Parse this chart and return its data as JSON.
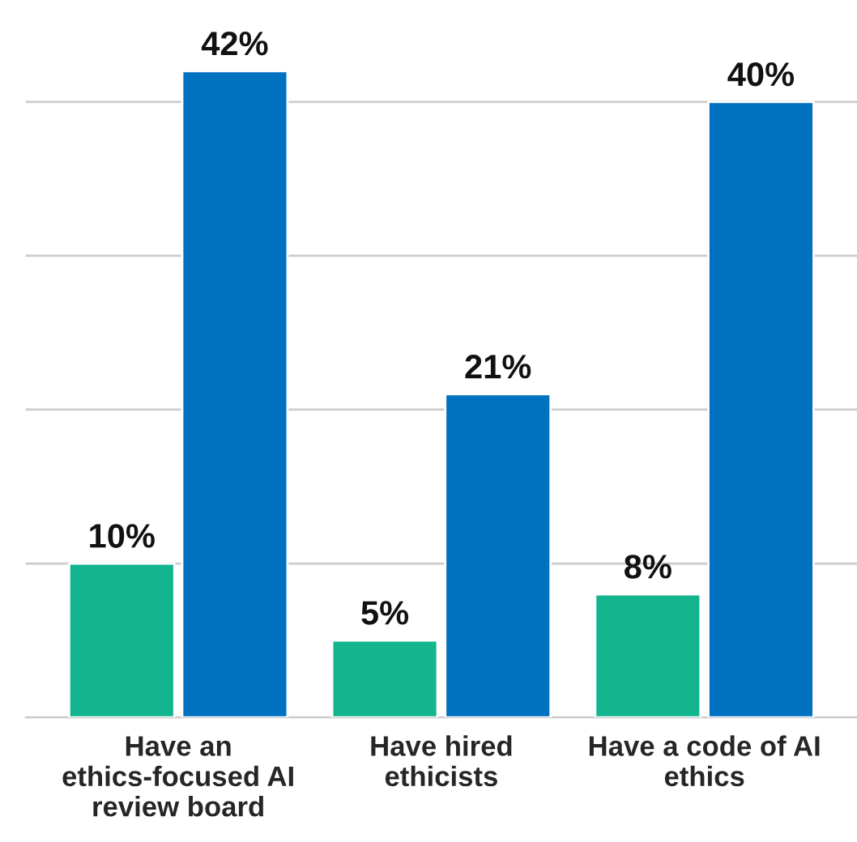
{
  "chart_data": {
    "type": "bar",
    "categories": [
      "Have an ethics-focused AI review board",
      "Have hired ethicists",
      "Have a code of AI ethics"
    ],
    "series": [
      {
        "color": "#13b48e",
        "values": [
          10,
          5,
          8
        ],
        "value_labels": [
          "10%",
          "5%",
          "8%"
        ]
      },
      {
        "color": "#0070c0",
        "values": [
          42,
          21,
          40
        ],
        "value_labels": [
          "42%",
          "21%",
          "40%"
        ]
      }
    ],
    "yticks": [
      {
        "value": 0,
        "label": null
      },
      {
        "value": 10,
        "label": null
      },
      {
        "value": 20,
        "label": null
      },
      {
        "value": 30,
        "label": null
      },
      {
        "value": 40,
        "label": null
      }
    ],
    "tick_labels": "x",
    "grid": "y",
    "legend": false
  }
}
